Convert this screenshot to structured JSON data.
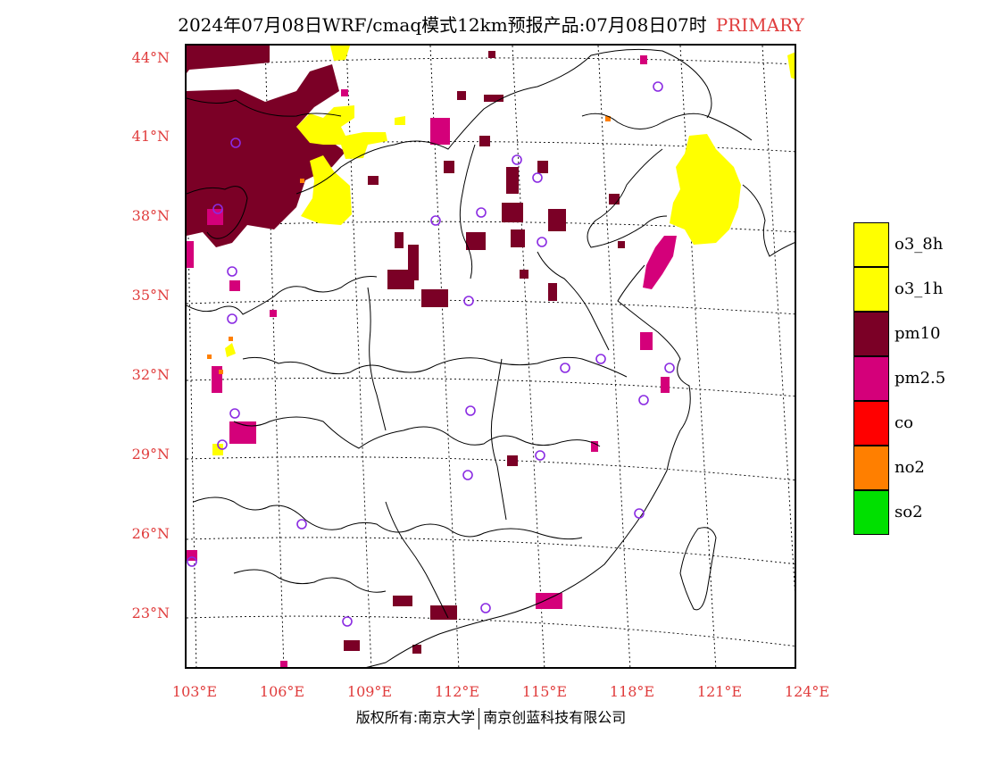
{
  "header": {
    "title": "2024年07月08日WRF/cmaq模式12km预报产品:07月08日07时",
    "badge": "PRIMARY"
  },
  "axes": {
    "lat_labels": [
      "44°N",
      "41°N",
      "38°N",
      "35°N",
      "32°N",
      "29°N",
      "26°N",
      "23°N"
    ],
    "lon_labels": [
      "103°E",
      "106°E",
      "109°E",
      "112°E",
      "115°E",
      "118°E",
      "121°E",
      "124°E"
    ]
  },
  "legend": {
    "items": [
      {
        "label": "o3_8h",
        "color": "#ffff00"
      },
      {
        "label": "o3_1h",
        "color": "#ffff00"
      },
      {
        "label": "pm10",
        "color": "#7b0026"
      },
      {
        "label": "pm2.5",
        "color": "#d4007a"
      },
      {
        "label": "co",
        "color": "#ff0000"
      },
      {
        "label": "no2",
        "color": "#ff7f00"
      },
      {
        "label": "so2",
        "color": "#00e000"
      }
    ]
  },
  "footer": {
    "left": "版权所有:南京大学",
    "right": "南京创蓝科技有限公司"
  },
  "colors": {
    "label_red": "#e03c3c",
    "station_circle": "#8a2be2"
  }
}
